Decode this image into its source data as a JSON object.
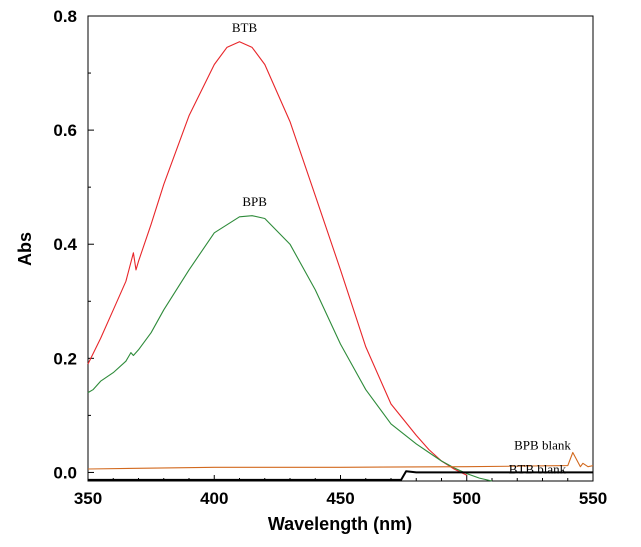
{
  "chart_data": {
    "type": "line",
    "xlabel": "Wavelength (nm)",
    "ylabel": "Abs",
    "xlim": [
      350,
      550
    ],
    "ylim": [
      -0.015,
      0.8
    ],
    "x_ticks": [
      350,
      400,
      450,
      500,
      550
    ],
    "y_ticks": [
      0.0,
      0.2,
      0.4,
      0.6,
      0.8
    ],
    "x_tick_labels": [
      "350",
      "400",
      "450",
      "500",
      "550"
    ],
    "y_tick_labels": [
      "0.0",
      "0.2",
      "0.4",
      "0.6",
      "0.8"
    ],
    "grid": false,
    "legend": "none",
    "series": [
      {
        "name": "BTB",
        "color": "#e8262a",
        "x": [
          350,
          355,
          360,
          365,
          368,
          369,
          370,
          375,
          380,
          390,
          400,
          405,
          410,
          415,
          420,
          430,
          440,
          450,
          460,
          470,
          480,
          485,
          490,
          495,
          500
        ],
        "y": [
          0.19,
          0.235,
          0.285,
          0.335,
          0.385,
          0.355,
          0.37,
          0.435,
          0.505,
          0.625,
          0.715,
          0.745,
          0.755,
          0.745,
          0.715,
          0.615,
          0.485,
          0.355,
          0.22,
          0.12,
          0.065,
          0.04,
          0.02,
          0.006,
          -0.005
        ]
      },
      {
        "name": "BPB",
        "color": "#2e8b3a",
        "x": [
          350,
          352,
          355,
          360,
          365,
          367,
          368,
          370,
          375,
          380,
          390,
          400,
          410,
          415,
          420,
          430,
          440,
          450,
          460,
          470,
          480,
          485,
          490,
          495,
          500,
          505,
          510
        ],
        "y": [
          0.14,
          0.145,
          0.16,
          0.175,
          0.195,
          0.21,
          0.205,
          0.215,
          0.245,
          0.285,
          0.355,
          0.42,
          0.448,
          0.45,
          0.445,
          0.4,
          0.32,
          0.225,
          0.145,
          0.085,
          0.05,
          0.035,
          0.02,
          0.008,
          -0.002,
          -0.01,
          -0.015
        ]
      },
      {
        "name": "BPB blank",
        "color": "#d2691e",
        "x": [
          350,
          400,
          450,
          500,
          540,
          542,
          545,
          546,
          548,
          550
        ],
        "y": [
          0.006,
          0.009,
          0.009,
          0.01,
          0.012,
          0.035,
          0.01,
          0.016,
          0.01,
          0.012
        ]
      },
      {
        "name": "BTB blank",
        "color": "#000000",
        "x": [
          350,
          400,
          450,
          474,
          476,
          480,
          500,
          550
        ],
        "y": [
          -0.013,
          -0.013,
          -0.013,
          -0.013,
          0.002,
          0.0,
          0.0,
          0.0
        ]
      }
    ],
    "annotations": [
      {
        "text": "BTB",
        "x": 412,
        "y": 0.772
      },
      {
        "text": "BPB",
        "x": 416,
        "y": 0.467
      },
      {
        "text": "BPB blank",
        "x": 530,
        "y": 0.04
      },
      {
        "text": "BTB blank",
        "x": 528,
        "y": -0.002
      }
    ]
  }
}
